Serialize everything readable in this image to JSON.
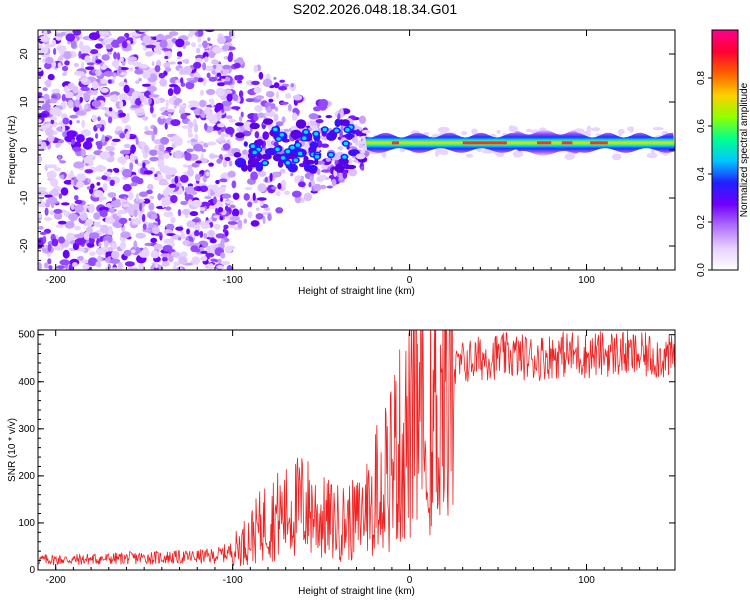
{
  "page": {
    "title": "S202.2026.048.18.34.G01"
  },
  "chart_data": [
    {
      "type": "heatmap",
      "title": "S202.2026.048.18.34.G01",
      "xlabel": "Height of straight line (km)",
      "ylabel": "Frequency (Hz)",
      "xlim": [
        -210,
        150
      ],
      "ylim": [
        -25,
        25
      ],
      "xticks": [
        -200,
        -100,
        0,
        100
      ],
      "yticks": [
        -20,
        -10,
        0,
        10,
        20
      ],
      "grid": false,
      "colorbar": {
        "label": "Normalized spectral amplitude",
        "range": [
          0,
          1
        ],
        "ticks": [
          0.0,
          0.2,
          0.4,
          0.6,
          0.8
        ],
        "tick_labels": [
          "0.0",
          "0.2",
          "0.4",
          "0.6",
          "0.8"
        ],
        "colors": [
          "#ffffff",
          "#e8d0ff",
          "#b070ff",
          "#7000ff",
          "#2020ff",
          "#00c8ff",
          "#00ff90",
          "#90ff00",
          "#ffd000",
          "#ff6000",
          "#ff0030",
          "#ff0090"
        ]
      },
      "features": {
        "noise_region_x": [
          -210,
          -100
        ],
        "transition_region_x": [
          -100,
          -25
        ],
        "tone_region_x": [
          -25,
          150
        ],
        "tone_frequency_hz": 1.5
      }
    },
    {
      "type": "line",
      "xlabel": "Height of straight line (km)",
      "ylabel": "SNR (10 * v/v)",
      "xlim": [
        -210,
        150
      ],
      "ylim": [
        0,
        510
      ],
      "xticks": [
        -200,
        -100,
        0,
        100
      ],
      "yticks": [
        0,
        100,
        200,
        300,
        400,
        500
      ],
      "grid": false,
      "series": [
        {
          "name": "SNR",
          "color": "#ee2222",
          "x": [
            -210,
            -190,
            -170,
            -150,
            -130,
            -110,
            -100,
            -90,
            -80,
            -70,
            -60,
            -50,
            -40,
            -30,
            -25,
            -20,
            -15,
            -10,
            -5,
            0,
            5,
            10,
            15,
            20,
            25,
            30,
            40,
            50,
            60,
            70,
            80,
            90,
            100,
            110,
            120,
            130,
            140,
            150
          ],
          "y": [
            22,
            22,
            24,
            26,
            27,
            30,
            40,
            70,
            110,
            120,
            140,
            110,
            100,
            105,
            130,
            160,
            210,
            240,
            260,
            290,
            320,
            330,
            340,
            390,
            420,
            440,
            450,
            455,
            455,
            450,
            455,
            460,
            455,
            460,
            460,
            455,
            455,
            450
          ]
        }
      ]
    }
  ]
}
